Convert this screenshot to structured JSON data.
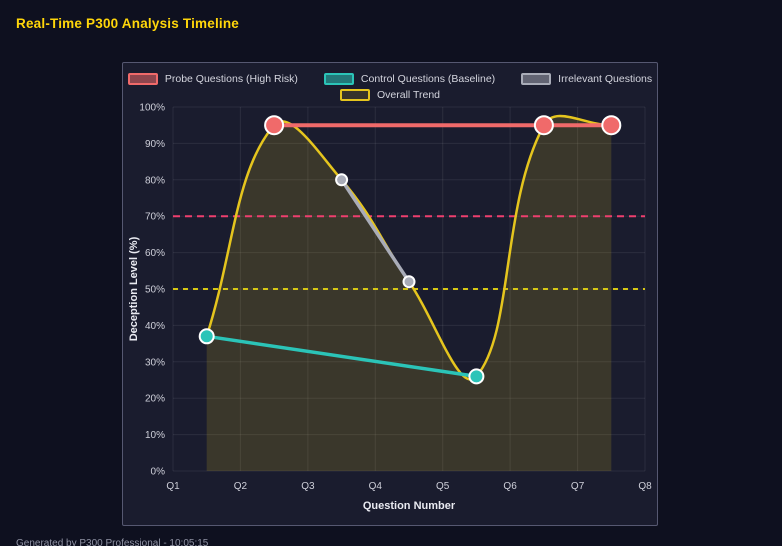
{
  "page": {
    "title": "Real-Time P300 Analysis Timeline",
    "footer": "Generated by P300 Professional - 10:05:15"
  },
  "chart_data": {
    "type": "line",
    "title": "Real-Time P300 Analysis Timeline",
    "xlabel": "Question Number",
    "ylabel": "Deception Level (%)",
    "x_ticks": [
      "Q1",
      "Q2",
      "Q3",
      "Q4",
      "Q5",
      "Q6",
      "Q7",
      "Q8"
    ],
    "y_ticks": [
      "0%",
      "10%",
      "20%",
      "30%",
      "40%",
      "50%",
      "60%",
      "70%",
      "80%",
      "90%",
      "100%"
    ],
    "xlim": [
      1,
      8
    ],
    "ylim": [
      0,
      100
    ],
    "grid": true,
    "grid_color": "rgba(255,255,255,0.08)",
    "legend_position": "top",
    "legend_rows": [
      [
        0,
        1,
        2
      ],
      [
        3
      ]
    ],
    "series": [
      {
        "name": "Probe Questions (High Risk)",
        "color": "#f06a6a",
        "swatch_fill": "rgba(240,106,106,0.55)",
        "x": [
          2.5,
          6.5,
          7.5
        ],
        "y": [
          95,
          95,
          95
        ],
        "line_width": 4,
        "point_radius": 9,
        "point_border": "#ffffff",
        "smooth": false,
        "fill": false
      },
      {
        "name": "Control Questions (Baseline)",
        "color": "#2bc4b8",
        "swatch_fill": "rgba(43,196,184,0.55)",
        "x": [
          1.5,
          5.5
        ],
        "y": [
          37,
          26
        ],
        "line_width": 3.5,
        "point_radius": 7,
        "point_border": "#ffffff",
        "smooth": false,
        "fill": false
      },
      {
        "name": "Irrelevant Questions",
        "color": "#a9acb8",
        "swatch_fill": "rgba(169,172,184,0.5)",
        "x": [
          3.5,
          4.5
        ],
        "y": [
          80,
          52
        ],
        "line_width": 3.5,
        "point_radius": 5.5,
        "point_border": "#ffffff",
        "smooth": false,
        "fill": false
      },
      {
        "name": "Overall Trend",
        "color": "#e5c51e",
        "swatch_fill": "rgba(229,197,30,0.15)",
        "x": [
          1.5,
          2.5,
          3.5,
          4.5,
          5.5,
          6.5,
          7.5
        ],
        "y": [
          37,
          95,
          80,
          52,
          26,
          95,
          95
        ],
        "line_width": 2.5,
        "point_radius": 0,
        "smooth": true,
        "tension": 0.4,
        "fill": true,
        "fill_color": "rgba(229,197,30,0.16)"
      }
    ],
    "thresholds": [
      {
        "y": 70,
        "color": "#ee3f6e",
        "dash": "7 5",
        "width": 2
      },
      {
        "y": 50,
        "color": "#d6c614",
        "dash": "5 5",
        "width": 2
      }
    ]
  }
}
